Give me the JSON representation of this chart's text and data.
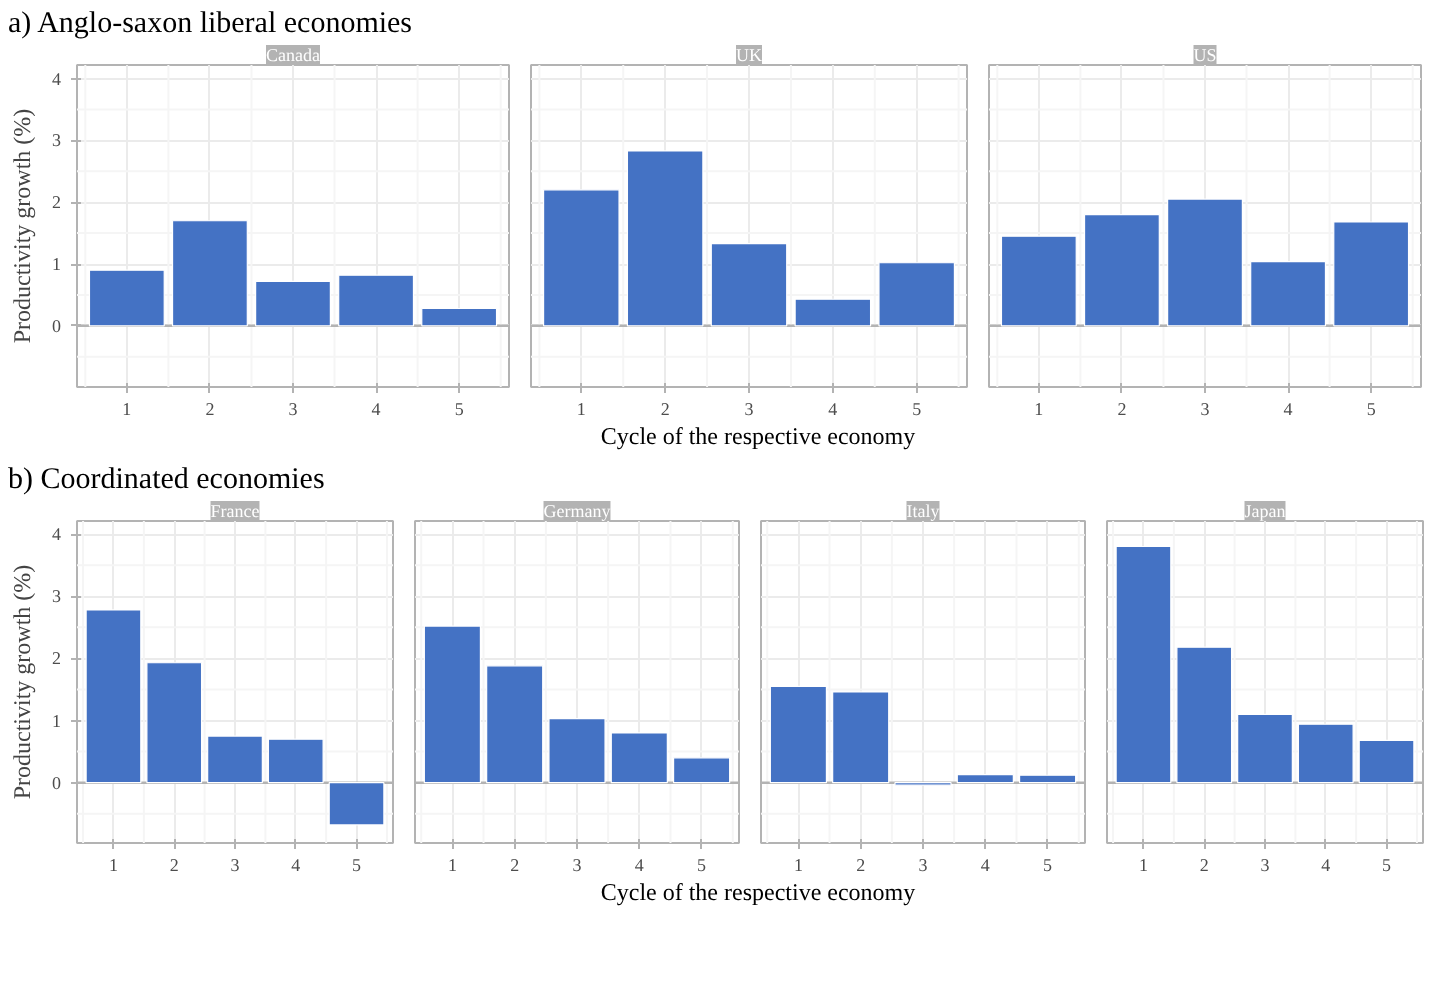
{
  "chart_data": [
    {
      "type": "bar",
      "title": "Canada",
      "annotations": [
        "a) Anglo-saxon liberal economies"
      ],
      "ylabel": "Productivity growth (%)",
      "categories": [
        "1",
        "2",
        "3",
        "4",
        "5"
      ],
      "values": [
        0.9,
        1.7,
        0.72,
        0.82,
        0.28
      ],
      "color": "#4472c4",
      "ylim": [
        -0.99,
        4.22
      ],
      "yticks": [
        0,
        1,
        2,
        3,
        4
      ],
      "grid": true,
      "ref_lines": [
        {
          "axis": "y",
          "value": 0,
          "color": "#b3b3b3"
        }
      ]
    },
    {
      "type": "bar",
      "title": "UK",
      "xlabel": "Cycle of the respective economy",
      "categories": [
        "1",
        "2",
        "3",
        "4",
        "5"
      ],
      "values": [
        2.2,
        2.83,
        1.33,
        0.43,
        1.02
      ],
      "color": "#4472c4",
      "ylim": [
        -0.99,
        4.22
      ],
      "yticks": [
        0,
        1,
        2,
        3,
        4
      ],
      "grid": true,
      "tick_labels": "x",
      "ref_lines": [
        {
          "axis": "y",
          "value": 0,
          "color": "#b3b3b3"
        }
      ]
    },
    {
      "type": "bar",
      "title": "US",
      "categories": [
        "1",
        "2",
        "3",
        "4",
        "5"
      ],
      "values": [
        1.45,
        1.8,
        2.05,
        1.04,
        1.68
      ],
      "color": "#4472c4",
      "ylim": [
        -0.99,
        4.22
      ],
      "yticks": [
        0,
        1,
        2,
        3,
        4
      ],
      "grid": true,
      "tick_labels": "x",
      "ref_lines": [
        {
          "axis": "y",
          "value": 0,
          "color": "#b3b3b3"
        }
      ]
    },
    {
      "type": "bar",
      "title": "France",
      "annotations": [
        "b) Coordinated economies"
      ],
      "ylabel": "Productivity growth (%)",
      "categories": [
        "1",
        "2",
        "3",
        "4",
        "5"
      ],
      "values": [
        2.78,
        1.93,
        0.75,
        0.7,
        -0.68
      ],
      "color": "#4472c4",
      "ylim": [
        -0.97,
        4.21
      ],
      "yticks": [
        0,
        1,
        2,
        3,
        4
      ],
      "grid": true,
      "ref_lines": [
        {
          "axis": "y",
          "value": 0,
          "color": "#b3b3b3"
        }
      ]
    },
    {
      "type": "bar",
      "title": "Germany",
      "xlabel": "Cycle of the respective economy",
      "categories": [
        "1",
        "2",
        "3",
        "4",
        "5"
      ],
      "values": [
        2.52,
        1.88,
        1.03,
        0.8,
        0.4
      ],
      "color": "#4472c4",
      "ylim": [
        -0.97,
        4.21
      ],
      "yticks": [
        0,
        1,
        2,
        3,
        4
      ],
      "grid": true,
      "tick_labels": "x",
      "ref_lines": [
        {
          "axis": "y",
          "value": 0,
          "color": "#b3b3b3"
        }
      ]
    },
    {
      "type": "bar",
      "title": "Italy",
      "categories": [
        "1",
        "2",
        "3",
        "4",
        "5"
      ],
      "values": [
        1.55,
        1.46,
        -0.04,
        0.13,
        0.12
      ],
      "color": "#4472c4",
      "ylim": [
        -0.97,
        4.21
      ],
      "yticks": [
        0,
        1,
        2,
        3,
        4
      ],
      "grid": true,
      "tick_labels": "x",
      "ref_lines": [
        {
          "axis": "y",
          "value": 0,
          "color": "#b3b3b3"
        }
      ]
    },
    {
      "type": "bar",
      "title": "Japan",
      "categories": [
        "1",
        "2",
        "3",
        "4",
        "5"
      ],
      "values": [
        3.8,
        2.18,
        1.1,
        0.94,
        0.68
      ],
      "color": "#4472c4",
      "ylim": [
        -0.97,
        4.21
      ],
      "yticks": [
        0,
        1,
        2,
        3,
        4
      ],
      "grid": true,
      "tick_labels": "x",
      "ref_lines": [
        {
          "axis": "y",
          "value": 0,
          "color": "#b3b3b3"
        }
      ]
    }
  ]
}
